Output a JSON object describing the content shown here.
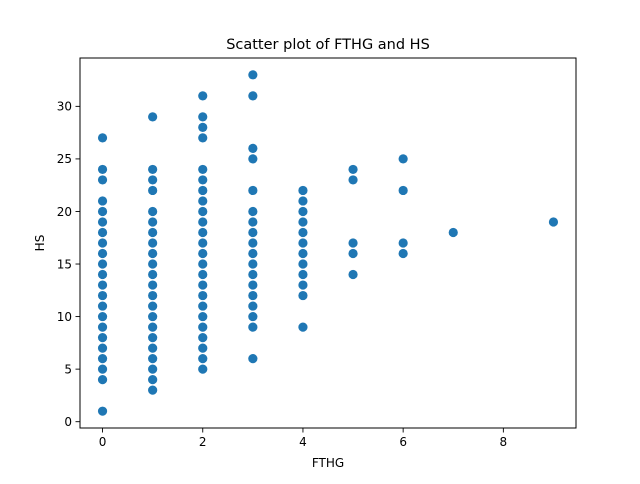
{
  "chart_data": {
    "type": "scatter",
    "title": "Scatter plot of FTHG and HS",
    "xlabel": "FTHG",
    "ylabel": "HS",
    "xlim": [
      -0.45,
      9.45
    ],
    "ylim": [
      -0.6,
      34.6
    ],
    "xticks": [
      0,
      2,
      4,
      6,
      8
    ],
    "yticks": [
      0,
      5,
      10,
      15,
      20,
      25,
      30
    ],
    "xtick_labels": [
      "0",
      "2",
      "4",
      "6",
      "8"
    ],
    "ytick_labels": [
      "0",
      "5",
      "10",
      "15",
      "20",
      "25",
      "30"
    ],
    "grid": false,
    "legend": "none",
    "marker_color": "#1f77b4",
    "points": [
      [
        0,
        1
      ],
      [
        0,
        4
      ],
      [
        0,
        5
      ],
      [
        0,
        6
      ],
      [
        0,
        7
      ],
      [
        0,
        8
      ],
      [
        0,
        9
      ],
      [
        0,
        10
      ],
      [
        0,
        11
      ],
      [
        0,
        12
      ],
      [
        0,
        13
      ],
      [
        0,
        14
      ],
      [
        0,
        15
      ],
      [
        0,
        16
      ],
      [
        0,
        17
      ],
      [
        0,
        18
      ],
      [
        0,
        19
      ],
      [
        0,
        20
      ],
      [
        0,
        21
      ],
      [
        0,
        23
      ],
      [
        0,
        24
      ],
      [
        0,
        27
      ],
      [
        1,
        3
      ],
      [
        1,
        4
      ],
      [
        1,
        5
      ],
      [
        1,
        6
      ],
      [
        1,
        7
      ],
      [
        1,
        8
      ],
      [
        1,
        9
      ],
      [
        1,
        10
      ],
      [
        1,
        11
      ],
      [
        1,
        12
      ],
      [
        1,
        13
      ],
      [
        1,
        14
      ],
      [
        1,
        15
      ],
      [
        1,
        16
      ],
      [
        1,
        17
      ],
      [
        1,
        18
      ],
      [
        1,
        19
      ],
      [
        1,
        20
      ],
      [
        1,
        22
      ],
      [
        1,
        23
      ],
      [
        1,
        24
      ],
      [
        1,
        29
      ],
      [
        2,
        5
      ],
      [
        2,
        6
      ],
      [
        2,
        7
      ],
      [
        2,
        8
      ],
      [
        2,
        9
      ],
      [
        2,
        10
      ],
      [
        2,
        11
      ],
      [
        2,
        12
      ],
      [
        2,
        13
      ],
      [
        2,
        14
      ],
      [
        2,
        15
      ],
      [
        2,
        16
      ],
      [
        2,
        17
      ],
      [
        2,
        18
      ],
      [
        2,
        19
      ],
      [
        2,
        20
      ],
      [
        2,
        21
      ],
      [
        2,
        22
      ],
      [
        2,
        23
      ],
      [
        2,
        24
      ],
      [
        2,
        27
      ],
      [
        2,
        28
      ],
      [
        2,
        29
      ],
      [
        2,
        31
      ],
      [
        3,
        6
      ],
      [
        3,
        9
      ],
      [
        3,
        10
      ],
      [
        3,
        11
      ],
      [
        3,
        12
      ],
      [
        3,
        13
      ],
      [
        3,
        14
      ],
      [
        3,
        15
      ],
      [
        3,
        16
      ],
      [
        3,
        17
      ],
      [
        3,
        18
      ],
      [
        3,
        19
      ],
      [
        3,
        20
      ],
      [
        3,
        22
      ],
      [
        3,
        25
      ],
      [
        3,
        26
      ],
      [
        3,
        31
      ],
      [
        3,
        33
      ],
      [
        4,
        9
      ],
      [
        4,
        12
      ],
      [
        4,
        13
      ],
      [
        4,
        14
      ],
      [
        4,
        15
      ],
      [
        4,
        16
      ],
      [
        4,
        17
      ],
      [
        4,
        18
      ],
      [
        4,
        19
      ],
      [
        4,
        20
      ],
      [
        4,
        21
      ],
      [
        4,
        22
      ],
      [
        5,
        14
      ],
      [
        5,
        16
      ],
      [
        5,
        17
      ],
      [
        5,
        23
      ],
      [
        5,
        24
      ],
      [
        6,
        16
      ],
      [
        6,
        17
      ],
      [
        6,
        22
      ],
      [
        6,
        25
      ],
      [
        7,
        18
      ],
      [
        9,
        19
      ]
    ]
  }
}
